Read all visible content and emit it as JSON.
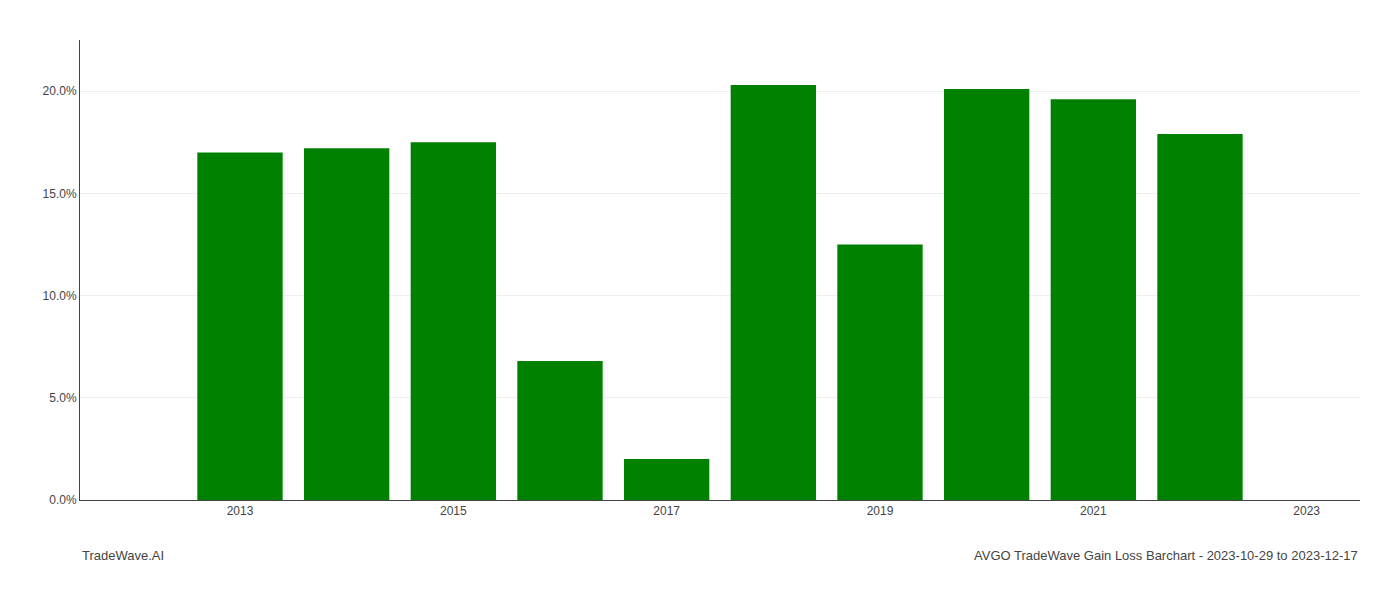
{
  "chart_data": {
    "type": "bar",
    "title": "AVGO TradeWave Gain Loss Barchart - 2023-10-29 to 2023-12-17",
    "annotations": [
      "TradeWave.AI"
    ],
    "x": [
      2013,
      2014,
      2015,
      2016,
      2017,
      2018,
      2019,
      2020,
      2021,
      2022
    ],
    "values": [
      0.17,
      0.172,
      0.175,
      0.068,
      0.02,
      0.203,
      0.125,
      0.201,
      0.196,
      0.179
    ],
    "color": "#008000",
    "xlim": [
      2011.5,
      2023.5
    ],
    "xticks": [
      2013,
      2015,
      2017,
      2019,
      2021,
      2023
    ],
    "ylim": [
      0,
      0.225
    ],
    "yticks": [
      {
        "value": 0.0,
        "label": "0.0%"
      },
      {
        "value": 0.05,
        "label": "5.0%"
      },
      {
        "value": 0.1,
        "label": "10.0%"
      },
      {
        "value": 0.15,
        "label": "15.0%"
      },
      {
        "value": 0.2,
        "label": "20.0%"
      }
    ],
    "grid": true
  }
}
